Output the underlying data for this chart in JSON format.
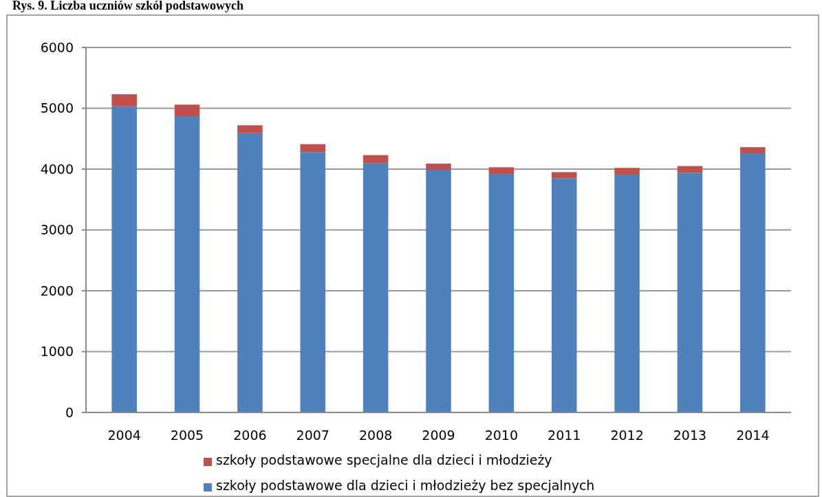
{
  "chart_data": {
    "type": "bar",
    "title": "Rys. 9. Liczba uczniów szkół podstawowych",
    "categories": [
      "2004",
      "2005",
      "2006",
      "2007",
      "2008",
      "2009",
      "2010",
      "2011",
      "2012",
      "2013",
      "2014"
    ],
    "stacked": true,
    "series": [
      {
        "name": "szkoły podstawowe dla dzieci i młodzieży bez specjalnych",
        "color": "#4f81bd",
        "values": [
          5030,
          4870,
          4590,
          4280,
          4100,
          3990,
          3920,
          3850,
          3910,
          3940,
          4260
        ]
      },
      {
        "name": "szkoły podstawowe specjalne dla dzieci i młodzieży",
        "color": "#c0504d",
        "values": [
          200,
          190,
          130,
          130,
          130,
          100,
          110,
          100,
          110,
          110,
          100
        ]
      }
    ],
    "ylim": [
      0,
      6000
    ],
    "yticks": [
      0,
      1000,
      2000,
      3000,
      4000,
      5000,
      6000
    ],
    "grid": "y",
    "legend": "bottom"
  }
}
